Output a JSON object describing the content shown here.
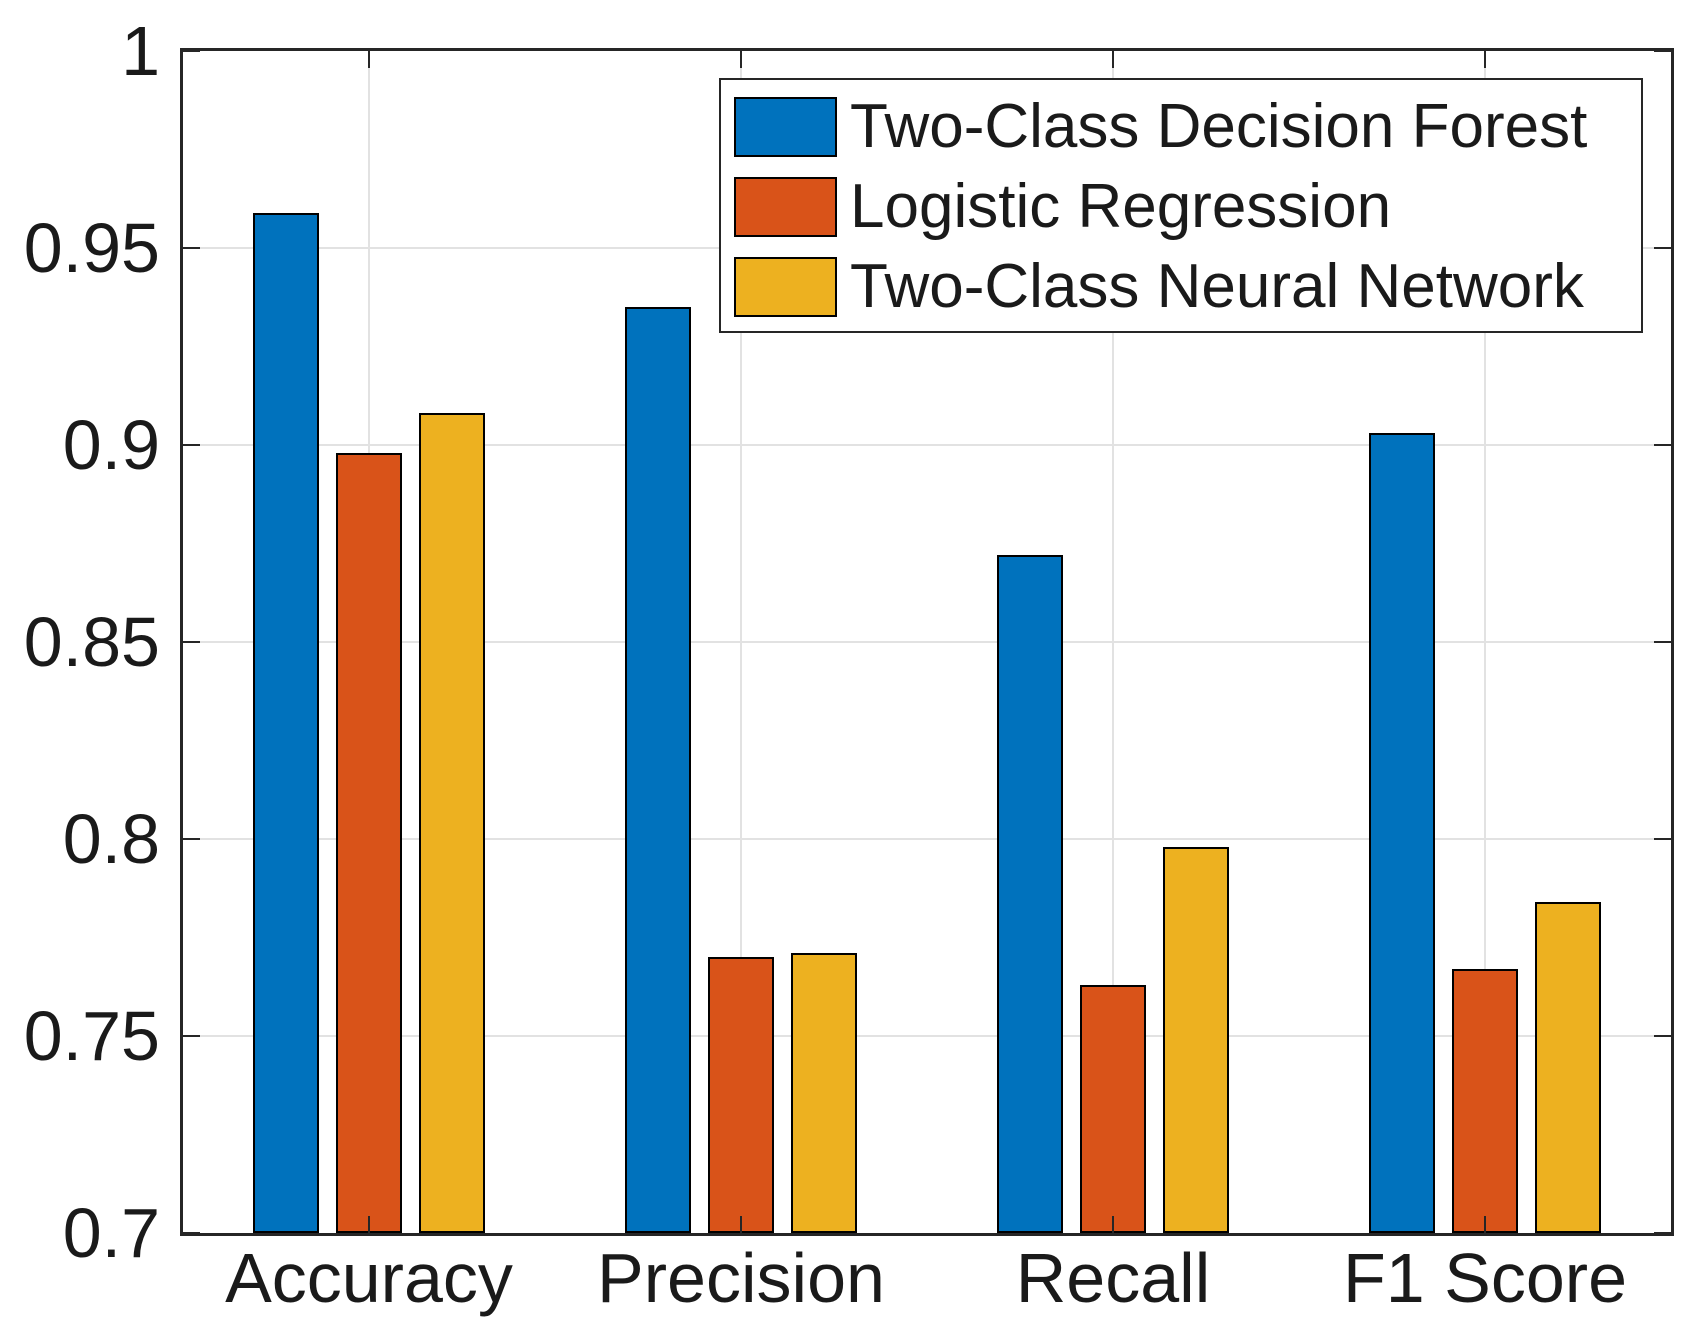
{
  "figure": {
    "background": "#ffffff",
    "axis_color": "#262626",
    "grid_color": "#e2e2e2",
    "text_color": "#1a1a1a",
    "bar_edge_color": "#000000"
  },
  "chart_data": {
    "type": "bar",
    "title": "",
    "xlabel": "",
    "ylabel": "",
    "categories": [
      "Accuracy",
      "Precision",
      "Recall",
      "F1 Score"
    ],
    "series": [
      {
        "name": "Two-Class Decision Forest",
        "color": "#0072BD",
        "values": [
          0.959,
          0.935,
          0.872,
          0.903
        ]
      },
      {
        "name": "Logistic Regression",
        "color": "#D95319",
        "values": [
          0.898,
          0.77,
          0.763,
          0.767
        ]
      },
      {
        "name": "Two-Class Neural Network",
        "color": "#EDB120",
        "values": [
          0.908,
          0.771,
          0.798,
          0.784
        ]
      }
    ],
    "ylim": [
      0.7,
      1.0
    ],
    "yticks": [
      0.7,
      0.75,
      0.8,
      0.85,
      0.9,
      0.95,
      1.0
    ],
    "ytick_labels": [
      "0.7",
      "0.75",
      "0.8",
      "0.85",
      "0.9",
      "0.95",
      "1"
    ],
    "grid": "on",
    "legend_position": "northeast"
  }
}
